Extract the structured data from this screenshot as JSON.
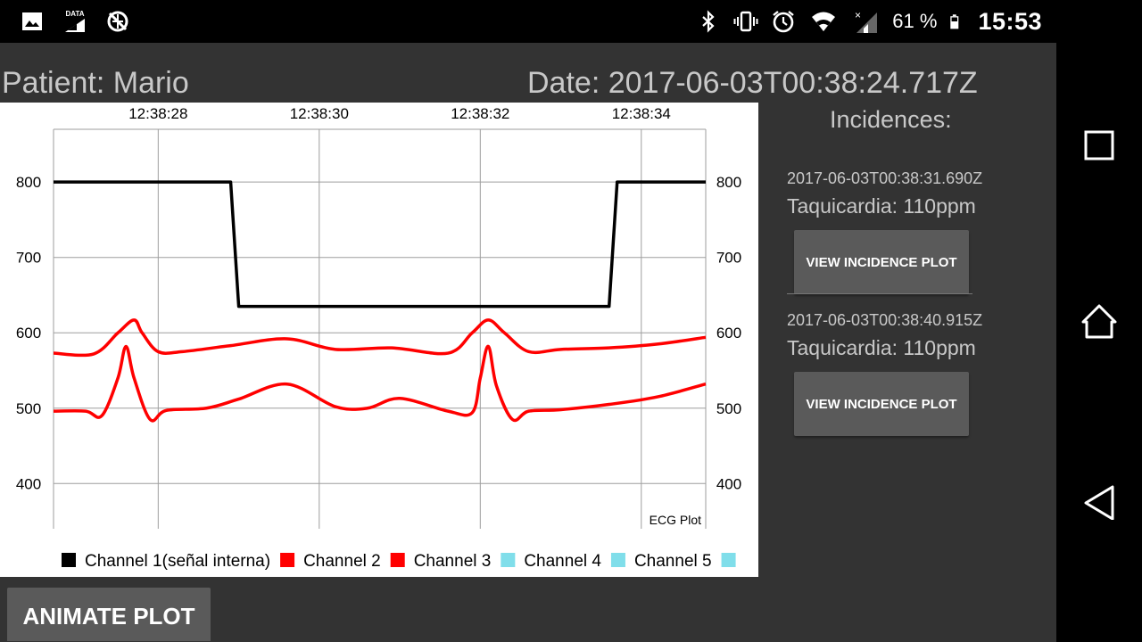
{
  "status_bar": {
    "icons_left": [
      "image-icon",
      "data-saver-icon",
      "vpn-off-icon"
    ],
    "data_badge": "DATA",
    "icons_right": [
      "bluetooth-icon",
      "vibrate-icon",
      "alarm-icon",
      "wifi-icon",
      "signal-icon",
      "battery-icon"
    ],
    "battery": "61 %",
    "time": "15:53"
  },
  "header": {
    "patient": "Patient: Mario",
    "date": "Date: 2017-06-03T00:38:24.717Z"
  },
  "chart_data": {
    "type": "line",
    "x_ticks": [
      "12:38:28",
      "12:38:30",
      "12:38:32",
      "12:38:34"
    ],
    "y_ticks": [
      800,
      700,
      600,
      500,
      400
    ],
    "ylim": [
      340,
      870
    ],
    "x_range_seconds": [
      26.7,
      34.8
    ],
    "description_label": "ECG Plot",
    "grid": true,
    "legend_position": "bottom",
    "series": [
      {
        "name": "Channel 1(señal interna)",
        "color": "#000000",
        "x": [
          26.7,
          28.9,
          29.0,
          33.6,
          33.7,
          34.8
        ],
        "y": [
          800,
          800,
          635,
          635,
          800,
          800
        ]
      },
      {
        "name": "Channel 2",
        "color": "#ff0000",
        "x": [
          26.7,
          27.2,
          27.5,
          27.7,
          27.8,
          28.0,
          28.3,
          28.9,
          29.6,
          30.2,
          30.9,
          31.6,
          31.9,
          32.1,
          32.3,
          32.6,
          33.0,
          33.6,
          34.2,
          34.8
        ],
        "y": [
          573,
          572,
          600,
          617,
          600,
          575,
          575,
          583,
          592,
          578,
          580,
          573,
          600,
          617,
          600,
          575,
          578,
          580,
          585,
          594
        ]
      },
      {
        "name": "Channel 3",
        "color": "#ff0000",
        "x": [
          26.7,
          27.1,
          27.3,
          27.5,
          27.6,
          27.7,
          27.9,
          28.1,
          28.6,
          29.0,
          29.6,
          30.2,
          30.6,
          31.0,
          31.6,
          31.9,
          32.0,
          32.1,
          32.2,
          32.4,
          32.6,
          33.0,
          33.6,
          34.2,
          34.8
        ],
        "y": [
          496,
          496,
          490,
          540,
          582,
          540,
          485,
          497,
          500,
          512,
          532,
          502,
          500,
          513,
          496,
          494,
          540,
          582,
          530,
          485,
          496,
          498,
          505,
          515,
          532
        ]
      },
      {
        "name": "Channel 4",
        "color": "#80deea",
        "x": [],
        "y": []
      },
      {
        "name": "Channel 5",
        "color": "#80deea",
        "x": [],
        "y": []
      },
      {
        "name": "",
        "color": "#80deea",
        "x": [],
        "y": []
      }
    ]
  },
  "incidences": {
    "title": "Incidences:",
    "items": [
      {
        "date": "2017-06-03T00:38:31.690Z",
        "desc": "Taquicardia: 110ppm",
        "button": "VIEW INCIDENCE PLOT"
      },
      {
        "date": "2017-06-03T00:38:40.915Z",
        "desc": "Taquicardia: 110ppm",
        "button": "VIEW INCIDENCE PLOT"
      }
    ]
  },
  "animate_button": "ANIMATE PLOT",
  "nav_bar": {
    "icons": [
      "recent-apps-icon",
      "home-icon",
      "back-icon"
    ]
  }
}
